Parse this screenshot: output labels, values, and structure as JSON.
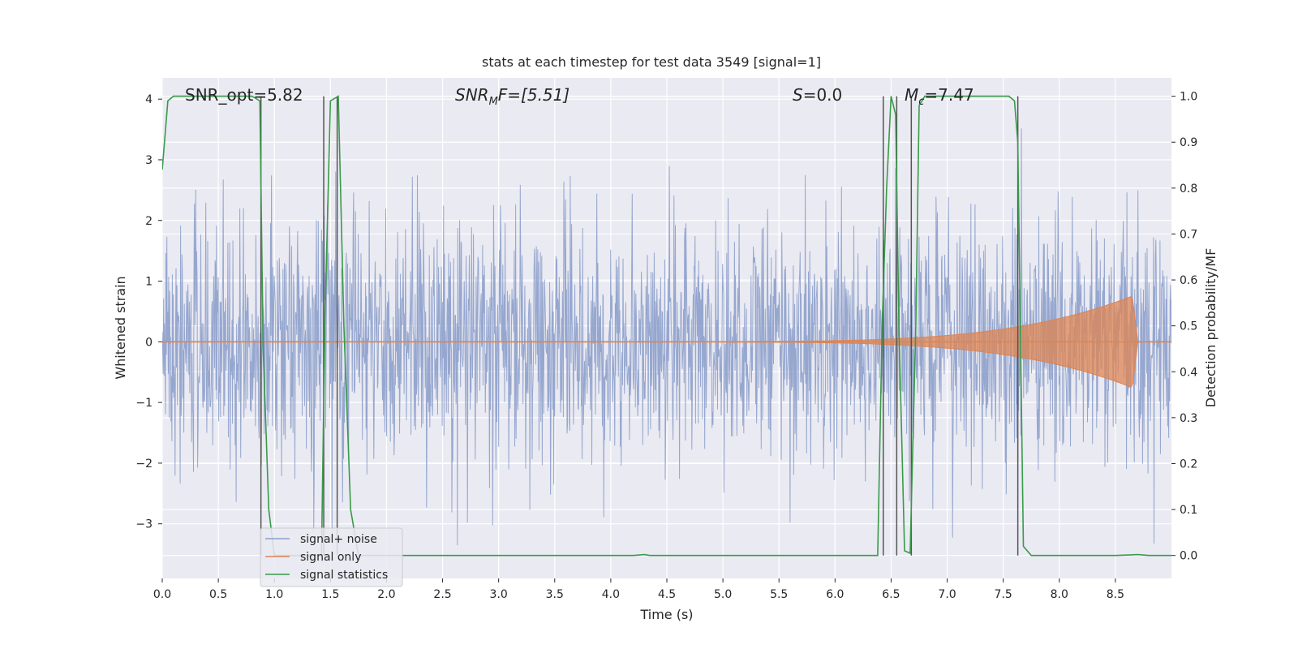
{
  "chart_data": {
    "type": "line",
    "title": "stats at each timestep for test data 3549 [signal=1]",
    "xlabel": "Time (s)",
    "ylabel_left": "Whitened strain",
    "ylabel_right": "Detection probability/MF",
    "xlim": [
      0.0,
      9.0
    ],
    "ylim_left": [
      -3.9,
      4.35
    ],
    "ylim_right": [
      -0.05,
      1.04
    ],
    "x_ticks": [
      0.0,
      0.5,
      1.0,
      1.5,
      2.0,
      2.5,
      3.0,
      3.5,
      4.0,
      4.5,
      5.0,
      5.5,
      6.0,
      6.5,
      7.0,
      7.5,
      8.0,
      8.5
    ],
    "x_tick_labels": [
      "0.0",
      "0.5",
      "1.0",
      "1.5",
      "2.0",
      "2.5",
      "3.0",
      "3.5",
      "4.0",
      "4.5",
      "5.0",
      "5.5",
      "6.0",
      "6.5",
      "7.0",
      "7.5",
      "8.0",
      "8.5"
    ],
    "y_left_ticks": [
      4,
      3,
      2,
      1,
      0,
      -1,
      -2,
      -3
    ],
    "y_left_tick_labels": [
      "4",
      "3",
      "2",
      "1",
      "0",
      "−1",
      "−2",
      "−3"
    ],
    "y_right_ticks": [
      1.0,
      0.9,
      0.8,
      0.7,
      0.6,
      0.5,
      0.4,
      0.3,
      0.2,
      0.1,
      0.0
    ],
    "y_right_tick_labels": [
      "1.0",
      "0.9",
      "0.8",
      "0.7",
      "0.6",
      "0.5",
      "0.4",
      "0.3",
      "0.2",
      "0.1",
      "0.0"
    ],
    "grid": true,
    "annotations": {
      "snr_opt": "SNR_opt=5.82",
      "snr_mf_base": "SNR",
      "snr_mf_sub": "M",
      "snr_mf_rest": "F=[5.51]",
      "s_italic": "S",
      "s_rest": "=0.0",
      "mc_italic": "M",
      "mc_sub": "c",
      "mc_rest": "=7.47"
    },
    "legend": {
      "placement": "lower-left",
      "entries": [
        "signal+ noise",
        "signal only",
        "signal statistics"
      ]
    },
    "colors": {
      "noise": "#8da0cb",
      "signal": "#dd8452",
      "stats": "#3a9a4a",
      "vlines": "#555555",
      "background": "#eaeaf2",
      "grid": "#ffffff"
    },
    "series": [
      {
        "name": "signal statistics",
        "axis": "right",
        "x": [
          0.0,
          0.05,
          0.1,
          0.2,
          0.4,
          0.6,
          0.8,
          0.87,
          0.9,
          0.95,
          1.0,
          1.1,
          1.2,
          1.3,
          1.42,
          1.45,
          1.5,
          1.57,
          1.62,
          1.68,
          1.75,
          2.5,
          3.5,
          4.2,
          4.3,
          4.35,
          4.5,
          5.0,
          5.5,
          6.0,
          6.38,
          6.42,
          6.46,
          6.5,
          6.54,
          6.57,
          6.62,
          6.67,
          6.72,
          6.75,
          6.8,
          7.0,
          7.3,
          7.55,
          7.6,
          7.63,
          7.68,
          7.75,
          8.0,
          8.5,
          8.7,
          8.8,
          9.0
        ],
        "y": [
          0.84,
          0.99,
          1.0,
          1.0,
          1.0,
          1.0,
          1.0,
          0.99,
          0.45,
          0.1,
          0.0,
          0.0,
          0.0,
          0.0,
          0.0,
          0.5,
          0.99,
          1.0,
          0.5,
          0.1,
          0.0,
          0.0,
          0.0,
          0.0,
          0.002,
          0.0,
          0.0,
          0.0,
          0.0,
          0.0,
          0.0,
          0.5,
          0.8,
          1.0,
          0.96,
          0.5,
          0.01,
          0.005,
          0.5,
          0.98,
          1.0,
          1.0,
          1.0,
          1.0,
          0.99,
          0.9,
          0.02,
          0.0,
          0.0,
          0.0,
          0.002,
          0.0,
          0.0
        ]
      },
      {
        "name": "detection markers",
        "axis": "right",
        "vlines_x": [
          0.88,
          1.44,
          1.56,
          6.43,
          6.55,
          6.68,
          7.63
        ]
      },
      {
        "name": "signal only",
        "axis": "left",
        "envelope": {
          "t_start": 4.3,
          "t_peak": 8.65,
          "peak_amplitude": 0.75,
          "t_end": 8.7
        }
      },
      {
        "name": "signal+ noise",
        "axis": "left",
        "noise": {
          "sigma": 1.0,
          "seed": 3549,
          "samples": 2200
        }
      }
    ]
  }
}
